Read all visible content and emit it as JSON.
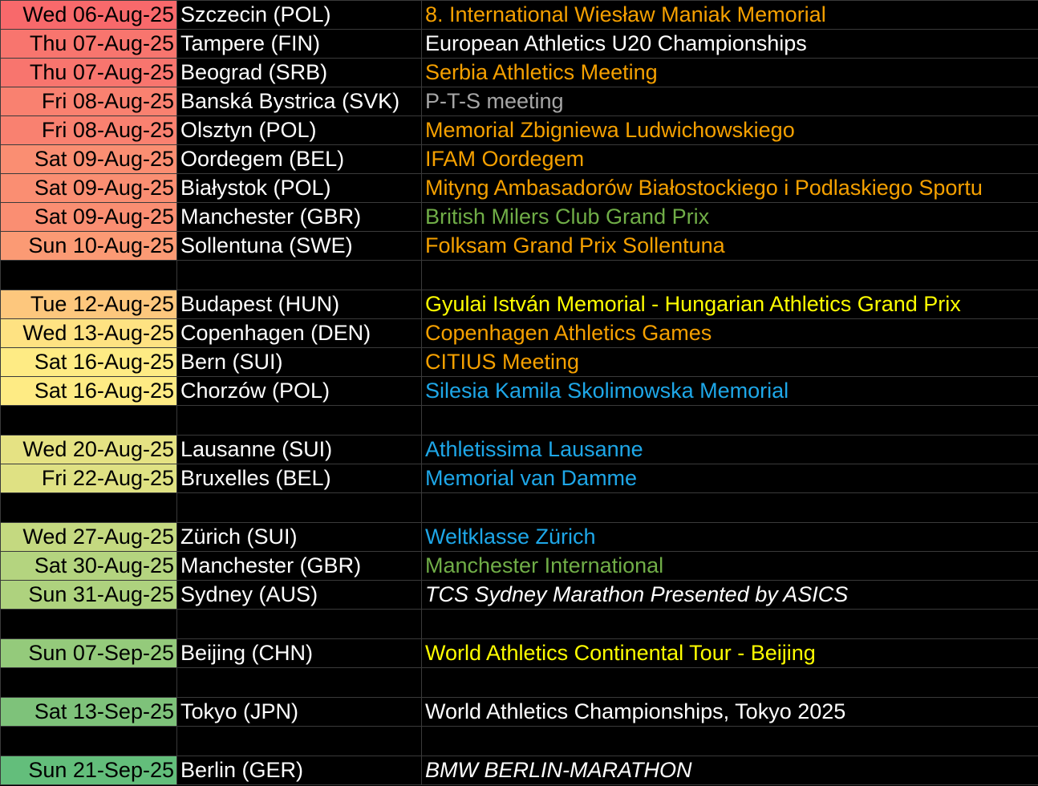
{
  "colors": {
    "orange": "#f5a000",
    "white": "#ffffff",
    "gray": "#a6a6a6",
    "green": "#70ad47",
    "yellow": "#ffff00",
    "blue": "#1ea7e8"
  },
  "rows": [
    {
      "date": "Wed 06-Aug-25",
      "location": "Szczecin (POL)",
      "event": "8. International Wiesław Maniak Memorial",
      "event_color": "orange",
      "italic": false,
      "date_bg": "#f8696b"
    },
    {
      "date": "Thu 07-Aug-25",
      "location": "Tampere (FIN)",
      "event": "European Athletics U20 Championships",
      "event_color": "white",
      "italic": false,
      "date_bg": "#f8756e"
    },
    {
      "date": "Thu 07-Aug-25",
      "location": "Beograd (SRB)",
      "event": "Serbia Athletics Meeting",
      "event_color": "orange",
      "italic": false,
      "date_bg": "#f8756e"
    },
    {
      "date": "Fri 08-Aug-25",
      "location": "Banská Bystrica (SVK)",
      "event": "P-T-S meeting",
      "event_color": "gray",
      "italic": false,
      "date_bg": "#f98170"
    },
    {
      "date": "Fri 08-Aug-25",
      "location": "Olsztyn (POL)",
      "event": "Memorial Zbigniewa Ludwichowskiego",
      "event_color": "orange",
      "italic": false,
      "date_bg": "#f98170"
    },
    {
      "date": "Sat 09-Aug-25",
      "location": "Oordegem (BEL)",
      "event": "IFAM Oordegem",
      "event_color": "orange",
      "italic": false,
      "date_bg": "#fa8e72"
    },
    {
      "date": "Sat 09-Aug-25",
      "location": "Białystok (POL)",
      "event": "Mityng Ambasadorów Białostockiego i Podlaskiego Sportu",
      "event_color": "orange",
      "italic": false,
      "date_bg": "#fa8e72"
    },
    {
      "date": "Sat 09-Aug-25",
      "location": "Manchester (GBR)",
      "event": "British Milers Club Grand Prix",
      "event_color": "green",
      "italic": false,
      "date_bg": "#fa8e72"
    },
    {
      "date": "Sun 10-Aug-25",
      "location": "Sollentuna (SWE)",
      "event": "Folksam Grand Prix Sollentuna",
      "event_color": "orange",
      "italic": false,
      "date_bg": "#fb9a74"
    },
    {
      "spacer": true
    },
    {
      "date": "Tue 12-Aug-25",
      "location": "Budapest (HUN)",
      "event": "Gyulai István Memorial - Hungarian Athletics Grand Prix",
      "event_color": "yellow",
      "italic": false,
      "date_bg": "#fdc77d"
    },
    {
      "date": "Wed 13-Aug-25",
      "location": "Copenhagen (DEN)",
      "event": "Copenhagen Athletics Games",
      "event_color": "orange",
      "italic": false,
      "date_bg": "#fee282"
    },
    {
      "date": "Sat 16-Aug-25",
      "location": "Bern (SUI)",
      "event": "CITIUS Meeting",
      "event_color": "orange",
      "italic": false,
      "date_bg": "#feeb84"
    },
    {
      "date": "Sat 16-Aug-25",
      "location": "Chorzów (POL)",
      "event": "Silesia Kamila Skolimowska Memorial",
      "event_color": "blue",
      "italic": false,
      "date_bg": "#feeb84"
    },
    {
      "spacer": true
    },
    {
      "date": "Wed 20-Aug-25",
      "location": "Lausanne (SUI)",
      "event": "Athletissima Lausanne",
      "event_color": "blue",
      "italic": false,
      "date_bg": "#e5e283"
    },
    {
      "date": "Fri 22-Aug-25",
      "location": "Bruxelles (BEL)",
      "event": "Memorial van Damme",
      "event_color": "blue",
      "italic": false,
      "date_bg": "#dfe183"
    },
    {
      "spacer": true
    },
    {
      "date": "Wed 27-Aug-25",
      "location": "Zürich (SUI)",
      "event": "Weltklasse Zürich",
      "event_color": "blue",
      "italic": false,
      "date_bg": "#c4d980"
    },
    {
      "date": "Sat 30-Aug-25",
      "location": "Manchester (GBR)",
      "event": "Manchester International",
      "event_color": "green",
      "italic": false,
      "date_bg": "#b4d47f"
    },
    {
      "date": "Sun 31-Aug-25",
      "location": "Sydney (AUS)",
      "event": "TCS Sydney Marathon Presented by ASICS",
      "event_color": "white",
      "italic": true,
      "date_bg": "#aed27e"
    },
    {
      "spacer": true
    },
    {
      "date": "Sun 07-Sep-25",
      "location": "Beijing (CHN)",
      "event": "World Athletics Continental Tour - Beijing",
      "event_color": "yellow",
      "italic": false,
      "date_bg": "#94ca7b"
    },
    {
      "spacer": true
    },
    {
      "date": "Sat 13-Sep-25",
      "location": "Tokyo (JPN)",
      "event": "World Athletics Championships, Tokyo 2025",
      "event_color": "white",
      "italic": false,
      "date_bg": "#7ec27a"
    },
    {
      "spacer": true
    },
    {
      "date": "Sun 21-Sep-25",
      "location": "Berlin (GER)",
      "event": "BMW BERLIN-MARATHON",
      "event_color": "white",
      "italic": true,
      "date_bg": "#63be7b"
    }
  ]
}
